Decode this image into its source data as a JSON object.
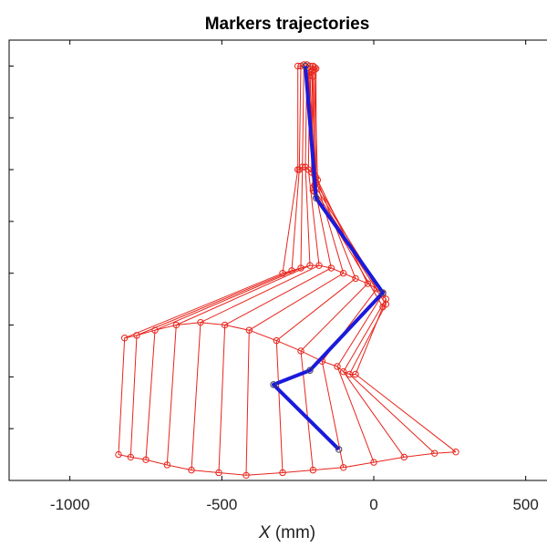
{
  "chart_data": {
    "type": "line",
    "title": "Markers trajectories",
    "xlabel": "X",
    "xlabel_unit": "(mm)",
    "xlim": [
      -1200,
      600
    ],
    "ylim": [
      -200,
      1500
    ],
    "xticks": [
      -1000,
      -500,
      0,
      500
    ],
    "xtick_labels": [
      "-1000",
      "-500",
      "0",
      "500"
    ],
    "yticks": [
      0,
      200,
      400,
      600,
      800,
      1000,
      1200,
      1400
    ],
    "grid": false,
    "colors": {
      "trajectory": "#e8241b",
      "segment": "#1a1adb",
      "frame": "#000000"
    },
    "series": [
      {
        "role": "trajectory",
        "marker": "circle-open",
        "frames": [
          [
            [
              -250,
              1400
            ],
            [
              -250,
              1000
            ],
            [
              -300,
              600
            ],
            [
              -820,
              350
            ],
            [
              -840,
              -100
            ]
          ],
          [
            [
              -240,
              1400
            ],
            [
              -245,
              1000
            ],
            [
              -270,
              610
            ],
            [
              -780,
              360
            ],
            [
              -800,
              -110
            ]
          ],
          [
            [
              -230,
              1405
            ],
            [
              -235,
              1010
            ],
            [
              -240,
              620
            ],
            [
              -720,
              380
            ],
            [
              -750,
              -120
            ]
          ],
          [
            [
              -220,
              1405
            ],
            [
              -225,
              1010
            ],
            [
              -210,
              630
            ],
            [
              -650,
              400
            ],
            [
              -680,
              -140
            ]
          ],
          [
            [
              -210,
              1400
            ],
            [
              -215,
              1000
            ],
            [
              -180,
              630
            ],
            [
              -570,
              410
            ],
            [
              -600,
              -160
            ]
          ],
          [
            [
              -200,
              1400
            ],
            [
              -205,
              990
            ],
            [
              -140,
              620
            ],
            [
              -490,
              400
            ],
            [
              -510,
              -170
            ]
          ],
          [
            [
              -195,
              1395
            ],
            [
              -195,
              980
            ],
            [
              -100,
              600
            ],
            [
              -410,
              380
            ],
            [
              -420,
              -180
            ]
          ],
          [
            [
              -190,
              1390
            ],
            [
              -190,
              970
            ],
            [
              -60,
              580
            ],
            [
              -320,
              340
            ],
            [
              -300,
              -170
            ]
          ],
          [
            [
              -195,
              1385
            ],
            [
              -185,
              960
            ],
            [
              -20,
              560
            ],
            [
              -240,
              300
            ],
            [
              -200,
              -160
            ]
          ],
          [
            [
              -205,
              1380
            ],
            [
              -190,
              950
            ],
            [
              10,
              540
            ],
            [
              -170,
              260
            ],
            [
              -100,
              -150
            ]
          ],
          [
            [
              -210,
              1375
            ],
            [
              -195,
              940
            ],
            [
              30,
              520
            ],
            [
              -120,
              240
            ],
            [
              0,
              -130
            ]
          ],
          [
            [
              -215,
              1370
            ],
            [
              -200,
              930
            ],
            [
              40,
              500
            ],
            [
              -100,
              220
            ],
            [
              100,
              -110
            ]
          ],
          [
            [
              -210,
              1365
            ],
            [
              -200,
              920
            ],
            [
              40,
              480
            ],
            [
              -80,
              210
            ],
            [
              200,
              -95
            ]
          ],
          [
            [
              -200,
              1360
            ],
            [
              -195,
              915
            ],
            [
              30,
              470
            ],
            [
              -60,
              210
            ],
            [
              270,
              -90
            ]
          ]
        ]
      },
      {
        "role": "segment",
        "frame": [
          [
            -225,
            1400
          ],
          [
            -190,
            890
          ],
          [
            30,
            525
          ],
          [
            -210,
            225
          ],
          [
            -330,
            170
          ],
          [
            -115,
            -80
          ]
        ]
      }
    ]
  }
}
